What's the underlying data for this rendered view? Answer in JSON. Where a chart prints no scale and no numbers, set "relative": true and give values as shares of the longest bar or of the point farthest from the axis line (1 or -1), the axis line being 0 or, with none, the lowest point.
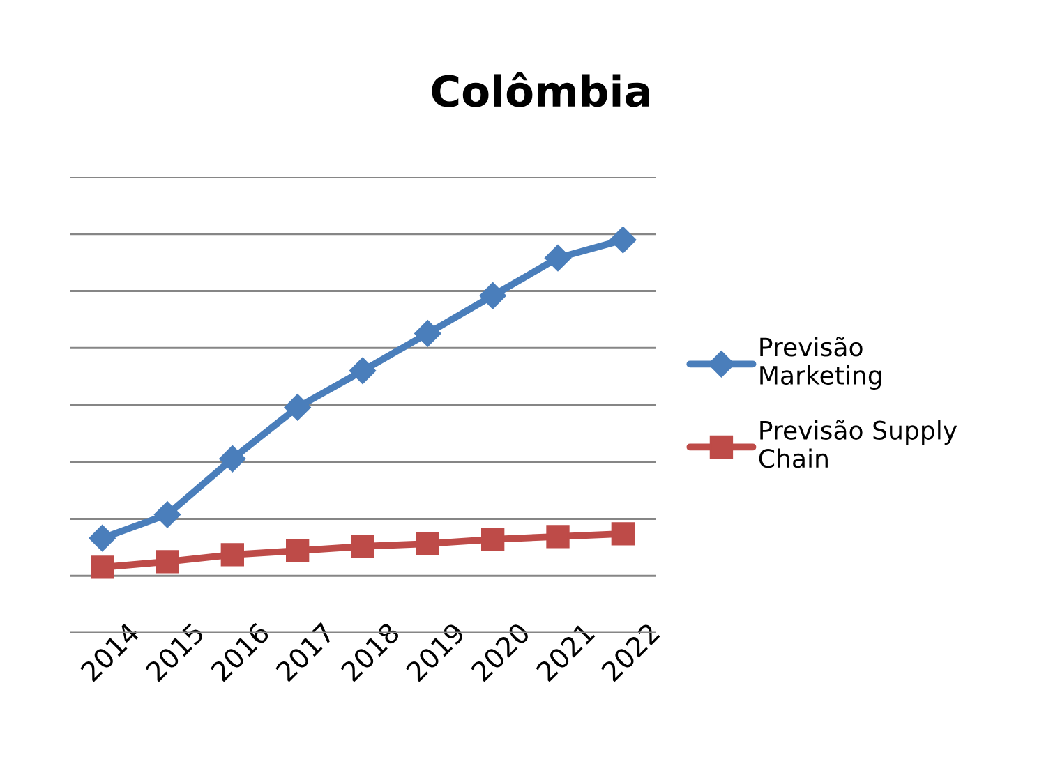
{
  "chart_data": {
    "type": "line",
    "title": "Colômbia",
    "relative": true,
    "grid": "y",
    "legend": "right",
    "line_style": "solid",
    "categories": [
      "2014",
      "2015",
      "2016",
      "2017",
      "2018",
      "2019",
      "2020",
      "2021",
      "2022"
    ],
    "series": [
      {
        "name": "Previsão Marketing",
        "color": "#4a7ebb",
        "marker": "diamond",
        "values": [
          0.241,
          0.301,
          0.443,
          0.574,
          0.667,
          0.762,
          0.858,
          0.954,
          1
        ]
      },
      {
        "name": "Previsão Supply Chain",
        "color": "#be4b48",
        "marker": "square",
        "values": [
          0.167,
          0.181,
          0.199,
          0.209,
          0.22,
          0.227,
          0.238,
          0.245,
          0.252
        ]
      }
    ]
  }
}
